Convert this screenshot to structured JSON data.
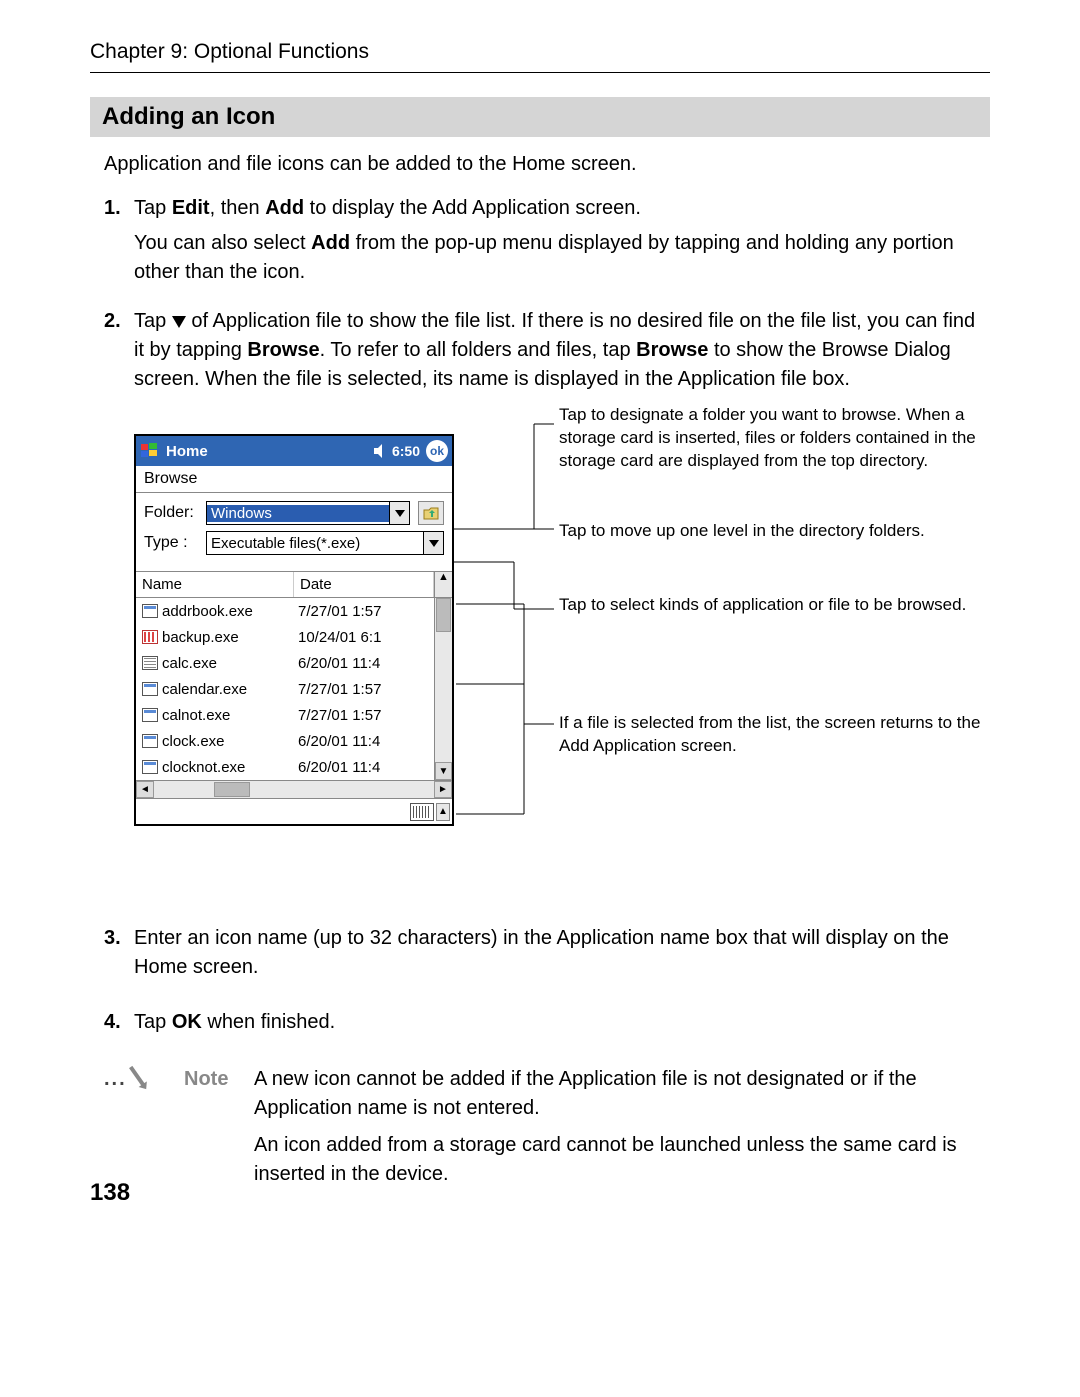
{
  "chapter_header": "Chapter 9: Optional Functions",
  "section_title": "Adding an Icon",
  "intro": "Application and file icons can be added to the Home screen.",
  "steps": {
    "s1_num": "1.",
    "s1_a": "Tap ",
    "s1_b1": "Edit",
    "s1_c": ", then ",
    "s1_b2": "Add",
    "s1_d": " to display the Add Application screen.",
    "s1_extra_a": "You can also select ",
    "s1_extra_b": "Add",
    "s1_extra_c": " from the pop-up menu displayed by tapping and holding any portion other than the icon.",
    "s2_num": "2.",
    "s2_a": "Tap ",
    "s2_b": " of Application file to show the file list. If there is no desired file on the file list, you can find it by tapping ",
    "s2_b1": "Browse",
    "s2_c": ". To refer to all folders and files, tap ",
    "s2_b2": "Browse",
    "s2_d": " to show the Browse Dialog screen. When the file is selected, its name is displayed in the Application file box.",
    "s3_num": "3.",
    "s3_text": "Enter an icon name (up to 32 characters) in the Application name box that will display on the Home screen.",
    "s4_num": "4.",
    "s4_a": "Tap ",
    "s4_b": "OK",
    "s4_c": " when finished."
  },
  "pda": {
    "title": "Home",
    "time": "6:50",
    "tab": "Browse",
    "folder_label": "Folder:",
    "folder_value": "Windows",
    "type_label": "Type :",
    "type_value": "Executable files(*.exe)",
    "col_name": "Name",
    "col_date": "Date",
    "rows": [
      {
        "icon": "app",
        "name": "addrbook.exe",
        "date": "7/27/01 1:57"
      },
      {
        "icon": "backup",
        "name": "backup.exe",
        "date": "10/24/01 6:1"
      },
      {
        "icon": "calc",
        "name": "calc.exe",
        "date": "6/20/01 11:4"
      },
      {
        "icon": "app",
        "name": "calendar.exe",
        "date": "7/27/01 1:57"
      },
      {
        "icon": "app",
        "name": "calnot.exe",
        "date": "7/27/01 1:57"
      },
      {
        "icon": "app",
        "name": "clock.exe",
        "date": "6/20/01 11:4"
      },
      {
        "icon": "app",
        "name": "clocknot.exe",
        "date": "6/20/01 11:4"
      }
    ],
    "ok_badge": "ok"
  },
  "callouts": {
    "c1": "Tap to designate a folder you want to browse. When a storage card is inserted, files or folders contained in the storage card are displayed from the top directory.",
    "c2": "Tap to move up one level in the directory folders.",
    "c3": "Tap to select kinds of application or file to be browsed.",
    "c4": "If a file is selected from the list, the screen returns to the Add Application screen."
  },
  "note": {
    "label": "Note",
    "p1": "A new icon cannot be added if the Application file is not designated or if the Application name is not entered.",
    "p2": "An icon added from a storage card cannot be launched unless the same card is inserted in the device."
  },
  "page_number": "138",
  "colors": {
    "titlebar": "#2f66b3",
    "section_bg": "#d5d5d5",
    "note_gray": "#888888"
  }
}
